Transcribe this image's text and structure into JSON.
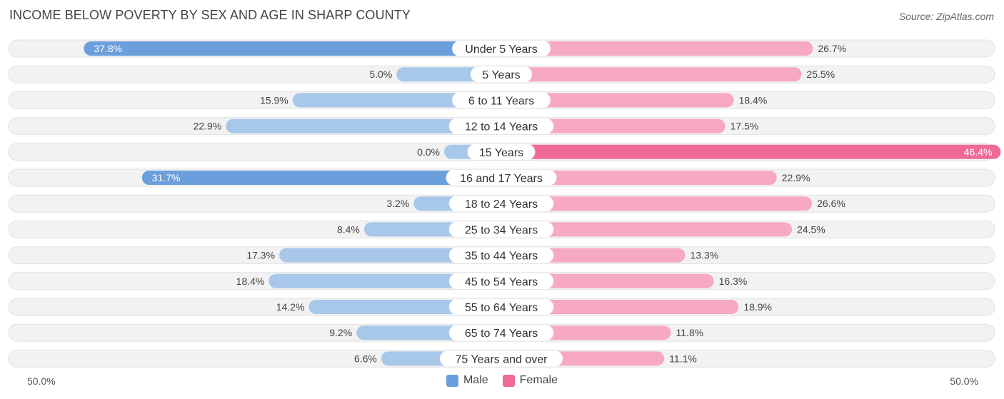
{
  "chart_data": {
    "type": "bar",
    "orientation": "horizontal-diverging",
    "title": "INCOME BELOW POVERTY BY SEX AND AGE IN SHARP COUNTY",
    "source": "Source: ZipAtlas.com",
    "categories": [
      "Under 5 Years",
      "5 Years",
      "6 to 11 Years",
      "12 to 14 Years",
      "15 Years",
      "16 and 17 Years",
      "18 to 24 Years",
      "25 to 34 Years",
      "35 to 44 Years",
      "45 to 54 Years",
      "55 to 64 Years",
      "65 to 74 Years",
      "75 Years and over"
    ],
    "series": [
      {
        "name": "Male",
        "values": [
          37.8,
          5.0,
          15.9,
          22.9,
          0.0,
          31.7,
          3.2,
          8.4,
          17.3,
          18.4,
          14.2,
          9.2,
          6.6
        ],
        "labels": [
          "37.8%",
          "5.0%",
          "15.9%",
          "22.9%",
          "0.0%",
          "31.7%",
          "3.2%",
          "8.4%",
          "17.3%",
          "18.4%",
          "14.2%",
          "9.2%",
          "6.6%"
        ]
      },
      {
        "name": "Female",
        "values": [
          26.7,
          25.5,
          18.4,
          17.5,
          46.4,
          22.9,
          26.6,
          24.5,
          13.3,
          16.3,
          18.9,
          11.8,
          11.1
        ],
        "labels": [
          "26.7%",
          "25.5%",
          "18.4%",
          "17.5%",
          "46.4%",
          "22.9%",
          "26.6%",
          "24.5%",
          "13.3%",
          "16.3%",
          "18.9%",
          "11.8%",
          "11.1%"
        ]
      }
    ],
    "xlim": [
      -50,
      50
    ],
    "axis_left_label": "50.0%",
    "axis_right_label": "50.0%",
    "legend": [
      "Male",
      "Female"
    ],
    "legend_position": "bottom-center",
    "colors": {
      "male_light": "#a8c8ea",
      "male_strong": "#6a9fdc",
      "female_light": "#f7a8c2",
      "female_strong": "#f06a97",
      "row_bg": "#f2f2f2",
      "row_border": "#e2e2e2"
    }
  }
}
